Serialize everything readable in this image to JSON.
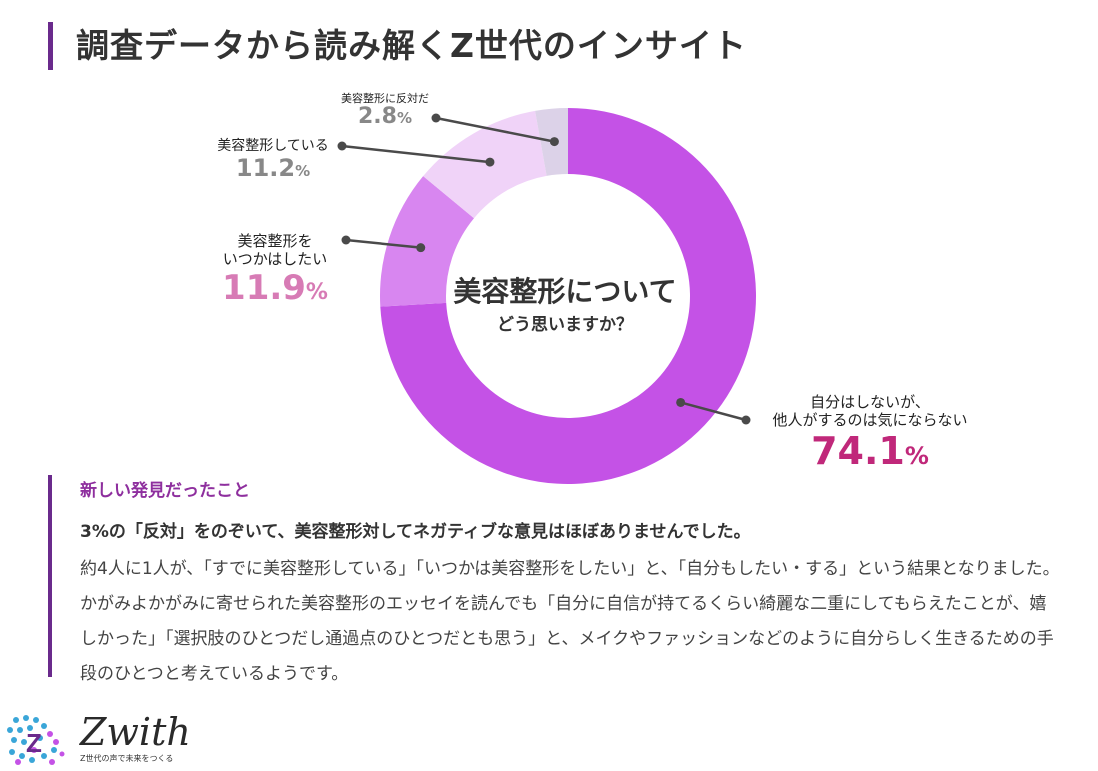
{
  "header": {
    "title": "調査データから読み解くZ世代のインサイト"
  },
  "chart_data": {
    "type": "pie",
    "donut": true,
    "title": "美容整形について",
    "subtitle": "どう思いますか？",
    "start": "top",
    "direction": "clockwise",
    "slices": [
      {
        "key": "ok",
        "label_lines": [
          "自分はしないが、",
          "他人がするのは気にならない"
        ],
        "value": 74.1,
        "value_text": "74.1",
        "unit": "%",
        "color": "#c452e6"
      },
      {
        "key": "want",
        "label_lines": [
          "美容整形を",
          "いつかはしたい"
        ],
        "value": 11.9,
        "value_text": "11.9",
        "unit": "%",
        "color": "#d886f0"
      },
      {
        "key": "done",
        "label_lines": [
          "美容整形している"
        ],
        "value": 11.2,
        "value_text": "11.2",
        "unit": "%",
        "color": "#f0d3f8"
      },
      {
        "key": "oppose",
        "label_lines": [
          "美容整形に反対だ"
        ],
        "value": 2.8,
        "value_text": "2.8",
        "unit": "%",
        "color": "#dcd2e8"
      }
    ],
    "leader_color": "#4a4a4a"
  },
  "findings": {
    "heading": "新しい発見だったこと",
    "lead": "3%の「反対」をのぞいて、美容整形対してネガティブな意見はほぼありませんでした。",
    "body": "約4人に1人が、「すでに美容整形している」「いつかは美容整形をしたい」と、「自分もしたい・する」という結果となりました。かがみよかがみに寄せられた美容整形のエッセイを読んでも「自分に自信が持てるくらい綺麗な二重にしてもらえたことが、嬉しかった」「選択肢のひとつだし通過点のひとつだとも思う」と、メイクやファッションなどのように自分らしく生きるための手段のひとつと考えているようです。"
  },
  "brand": {
    "name": "Zwith",
    "tagline": "Z世代の声で未来をつくる",
    "colors": {
      "accent": "#6a2a8c",
      "dots_a": "#3aa6d8",
      "dots_b": "#c452e6"
    }
  }
}
